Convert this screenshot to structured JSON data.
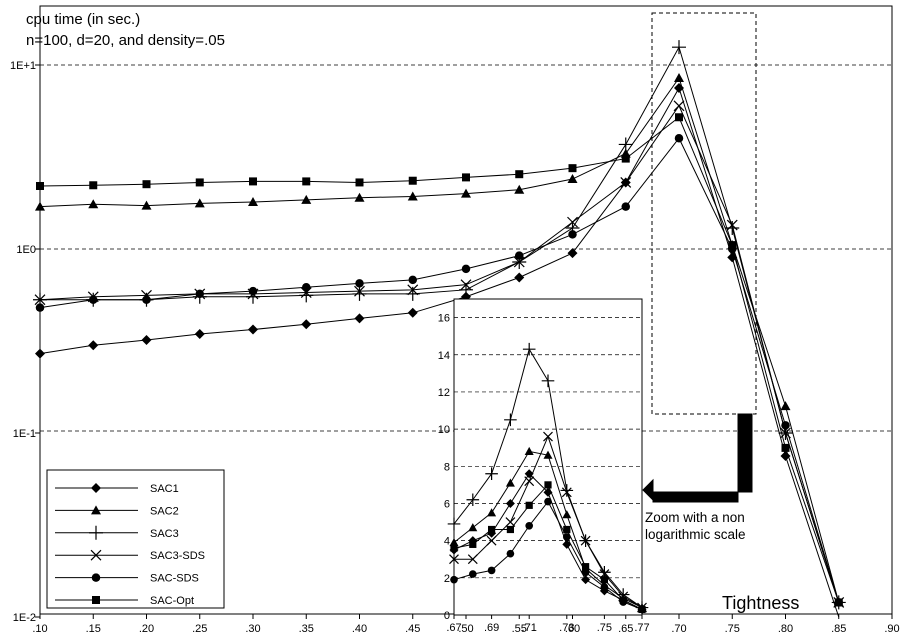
{
  "chart_data": [
    {
      "type": "line",
      "title": "cpu time (in sec.)",
      "subtitle": "n=100, d=20, and density=.05",
      "xlabel": "Tightness",
      "ylabel": "",
      "yscale": "log",
      "xlim": [
        0.1,
        0.9
      ],
      "ylim": [
        0.01,
        20
      ],
      "x_tick_labels": [
        ".10",
        ".15",
        ".20",
        ".25",
        ".30",
        ".35",
        ".40",
        ".45",
        ".50",
        ".55",
        ".60",
        ".65",
        ".70",
        ".75",
        ".80",
        ".85",
        ".90"
      ],
      "y_tick_labels": [
        "1E-2",
        "1E-1",
        "1E0",
        "1E+1"
      ],
      "y_tick_values": [
        0.01,
        0.1,
        1,
        10
      ],
      "grid": "horizontal dashed",
      "legend": "bottom-left",
      "series": [
        {
          "name": "SAC1",
          "marker": "diamond",
          "x": [
            0.1,
            0.15,
            0.2,
            0.25,
            0.3,
            0.35,
            0.4,
            0.45,
            0.5,
            0.55,
            0.6,
            0.65,
            0.7,
            0.75,
            0.8,
            0.85
          ],
          "y": [
            0.27,
            0.3,
            0.32,
            0.345,
            0.365,
            0.39,
            0.42,
            0.45,
            0.55,
            0.7,
            0.95,
            2.3,
            7.5,
            0.9,
            0.075,
            0.01
          ]
        },
        {
          "name": "SAC2",
          "marker": "triangle",
          "x": [
            0.1,
            0.15,
            0.2,
            0.25,
            0.3,
            0.35,
            0.4,
            0.45,
            0.5,
            0.55,
            0.6,
            0.65,
            0.7,
            0.75,
            0.8,
            0.85
          ],
          "y": [
            1.7,
            1.75,
            1.72,
            1.77,
            1.8,
            1.85,
            1.9,
            1.93,
            2.0,
            2.1,
            2.4,
            3.3,
            8.5,
            1.05,
            0.14,
            0.012
          ]
        },
        {
          "name": "SAC3",
          "marker": "plus",
          "x": [
            0.1,
            0.15,
            0.2,
            0.25,
            0.3,
            0.35,
            0.4,
            0.45,
            0.5,
            0.55,
            0.6,
            0.65,
            0.7,
            0.75,
            0.8,
            0.85
          ],
          "y": [
            0.53,
            0.53,
            0.53,
            0.55,
            0.55,
            0.56,
            0.57,
            0.57,
            0.6,
            0.85,
            1.3,
            3.7,
            12.5,
            1.3,
            0.1,
            0.012
          ]
        },
        {
          "name": "SAC3-SDS",
          "marker": "x",
          "x": [
            0.1,
            0.15,
            0.2,
            0.25,
            0.3,
            0.35,
            0.4,
            0.45,
            0.5,
            0.55,
            0.6,
            0.65,
            0.7,
            0.75,
            0.8,
            0.85
          ],
          "y": [
            0.53,
            0.55,
            0.56,
            0.57,
            0.57,
            0.58,
            0.59,
            0.6,
            0.64,
            0.85,
            1.4,
            2.3,
            6.0,
            1.35,
            0.1,
            0.012
          ]
        },
        {
          "name": "SAC-SDS",
          "marker": "circle",
          "x": [
            0.1,
            0.15,
            0.2,
            0.25,
            0.3,
            0.35,
            0.4,
            0.45,
            0.5,
            0.55,
            0.6,
            0.65,
            0.7,
            0.75,
            0.8,
            0.85
          ],
          "y": [
            0.48,
            0.53,
            0.53,
            0.57,
            0.59,
            0.62,
            0.65,
            0.68,
            0.78,
            0.92,
            1.2,
            1.7,
            4.0,
            1.0,
            0.11,
            0.012
          ]
        },
        {
          "name": "SAC-Opt",
          "marker": "square",
          "x": [
            0.1,
            0.15,
            0.2,
            0.25,
            0.3,
            0.35,
            0.4,
            0.45,
            0.5,
            0.55,
            0.6,
            0.65,
            0.7,
            0.75,
            0.8,
            0.85
          ],
          "y": [
            2.2,
            2.22,
            2.25,
            2.3,
            2.33,
            2.33,
            2.3,
            2.35,
            2.45,
            2.55,
            2.75,
            3.1,
            5.2,
            1.05,
            0.083,
            0.012
          ]
        }
      ]
    },
    {
      "type": "line",
      "title": "",
      "xlabel": "",
      "ylabel": "",
      "yscale": "linear",
      "xlim": [
        0.67,
        0.77
      ],
      "ylim": [
        0,
        17
      ],
      "x_tick_labels": [
        ".67",
        ".69",
        ".71",
        ".73",
        ".75",
        ".77"
      ],
      "y_tick_labels": [
        "0",
        "2",
        "4",
        "6",
        "8",
        "10",
        "12",
        "14",
        "16"
      ],
      "grid": "horizontal dashed",
      "series": [
        {
          "name": "SAC1",
          "marker": "diamond",
          "x": [
            0.67,
            0.68,
            0.69,
            0.7,
            0.71,
            0.72,
            0.73,
            0.74,
            0.75,
            0.76,
            0.77
          ],
          "y": [
            3.5,
            4.0,
            4.4,
            6.0,
            7.6,
            6.6,
            3.8,
            1.9,
            1.3,
            0.8,
            0.3
          ]
        },
        {
          "name": "SAC2",
          "marker": "triangle",
          "x": [
            0.67,
            0.68,
            0.69,
            0.7,
            0.71,
            0.72,
            0.73,
            0.74,
            0.75,
            0.76,
            0.77
          ],
          "y": [
            3.9,
            4.7,
            5.5,
            7.1,
            8.8,
            8.6,
            5.4,
            2.5,
            1.6,
            0.9,
            0.4
          ]
        },
        {
          "name": "SAC3",
          "marker": "plus",
          "x": [
            0.67,
            0.68,
            0.69,
            0.7,
            0.71,
            0.72,
            0.73,
            0.74,
            0.75,
            0.76,
            0.77
          ],
          "y": [
            4.9,
            6.2,
            7.6,
            10.5,
            14.3,
            12.6,
            6.7,
            4.0,
            2.3,
            1.1,
            0.4
          ]
        },
        {
          "name": "SAC3-SDS",
          "marker": "x",
          "x": [
            0.67,
            0.68,
            0.69,
            0.7,
            0.71,
            0.72,
            0.73,
            0.74,
            0.75,
            0.76,
            0.77
          ],
          "y": [
            3.0,
            3.0,
            4.0,
            5.0,
            7.2,
            9.6,
            6.6,
            4.0,
            2.2,
            1.0,
            0.4
          ]
        },
        {
          "name": "SAC-SDS",
          "marker": "circle",
          "x": [
            0.67,
            0.68,
            0.69,
            0.7,
            0.71,
            0.72,
            0.73,
            0.74,
            0.75,
            0.76,
            0.77
          ],
          "y": [
            1.9,
            2.2,
            2.4,
            3.3,
            4.8,
            6.1,
            4.2,
            2.3,
            1.5,
            0.7,
            0.3
          ]
        },
        {
          "name": "SAC-Opt",
          "marker": "square",
          "x": [
            0.67,
            0.68,
            0.69,
            0.7,
            0.71,
            0.72,
            0.73,
            0.74,
            0.75,
            0.76,
            0.77
          ],
          "y": [
            3.6,
            3.8,
            4.6,
            4.6,
            5.9,
            7.0,
            4.6,
            2.6,
            1.9,
            0.8,
            0.3
          ]
        }
      ]
    }
  ],
  "annotation": {
    "zoom_text": [
      "Zoom with a non",
      "logarithmic scale"
    ]
  }
}
